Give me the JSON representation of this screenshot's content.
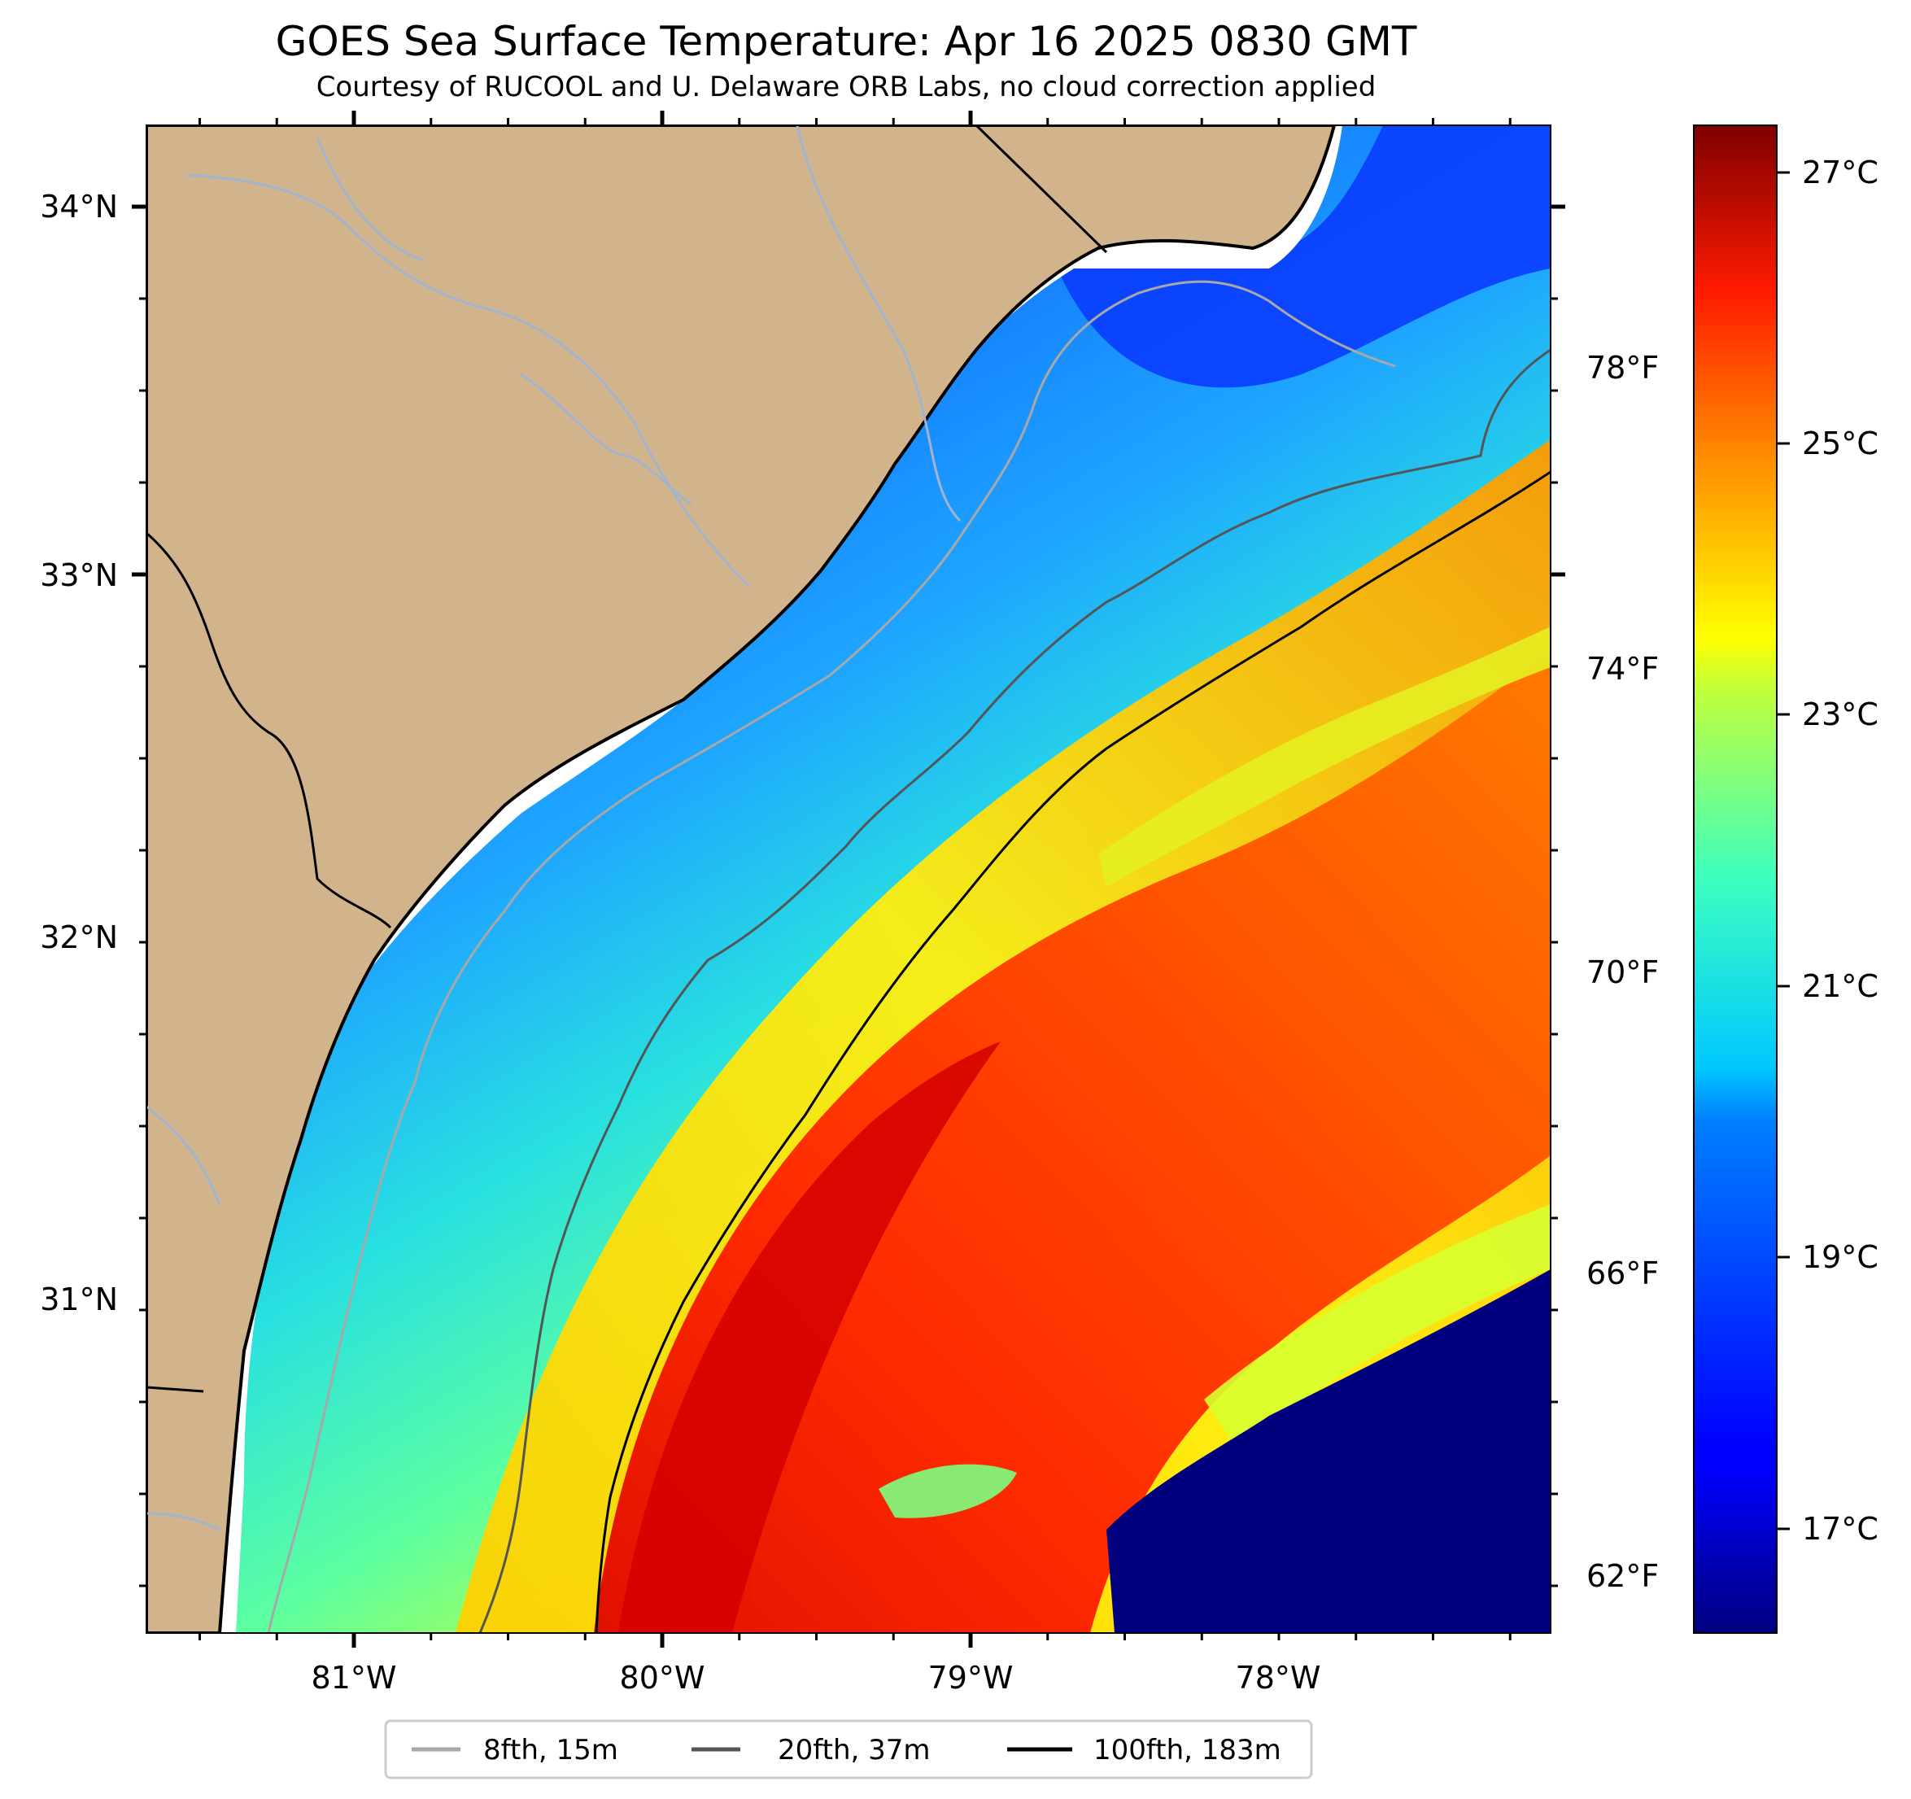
{
  "title": "GOES Sea Surface Temperature: Apr 16 2025 0830 GMT",
  "subtitle": "Courtesy of RUCOOL and U. Delaware ORB Labs, no cloud correction applied",
  "colors": {
    "land": "#d2b48c",
    "river": "#a0b4d0",
    "coast": "#000000",
    "no_data": "#ffffff",
    "isobath_8fth": "#a8a8a8",
    "isobath_20fth": "#555555",
    "isobath_100fth": "#000000"
  },
  "map": {
    "lon_ticks": [
      "81°W",
      "80°W",
      "79°W",
      "78°W"
    ],
    "lat_ticks": [
      "34°N",
      "33°N",
      "32°N",
      "31°N"
    ]
  },
  "colorbar": {
    "celsius_labels": [
      "27°C",
      "25°C",
      "23°C",
      "21°C",
      "19°C",
      "17°C"
    ],
    "fahrenheit_labels": [
      "78°F",
      "74°F",
      "70°F",
      "66°F",
      "62°F"
    ],
    "colormap": "jet"
  },
  "legend": {
    "items": [
      {
        "label": "8fth, 15m",
        "color": "#a8a8a8"
      },
      {
        "label": "20fth, 37m",
        "color": "#555555"
      },
      {
        "label": "100fth, 183m",
        "color": "#000000"
      }
    ]
  }
}
